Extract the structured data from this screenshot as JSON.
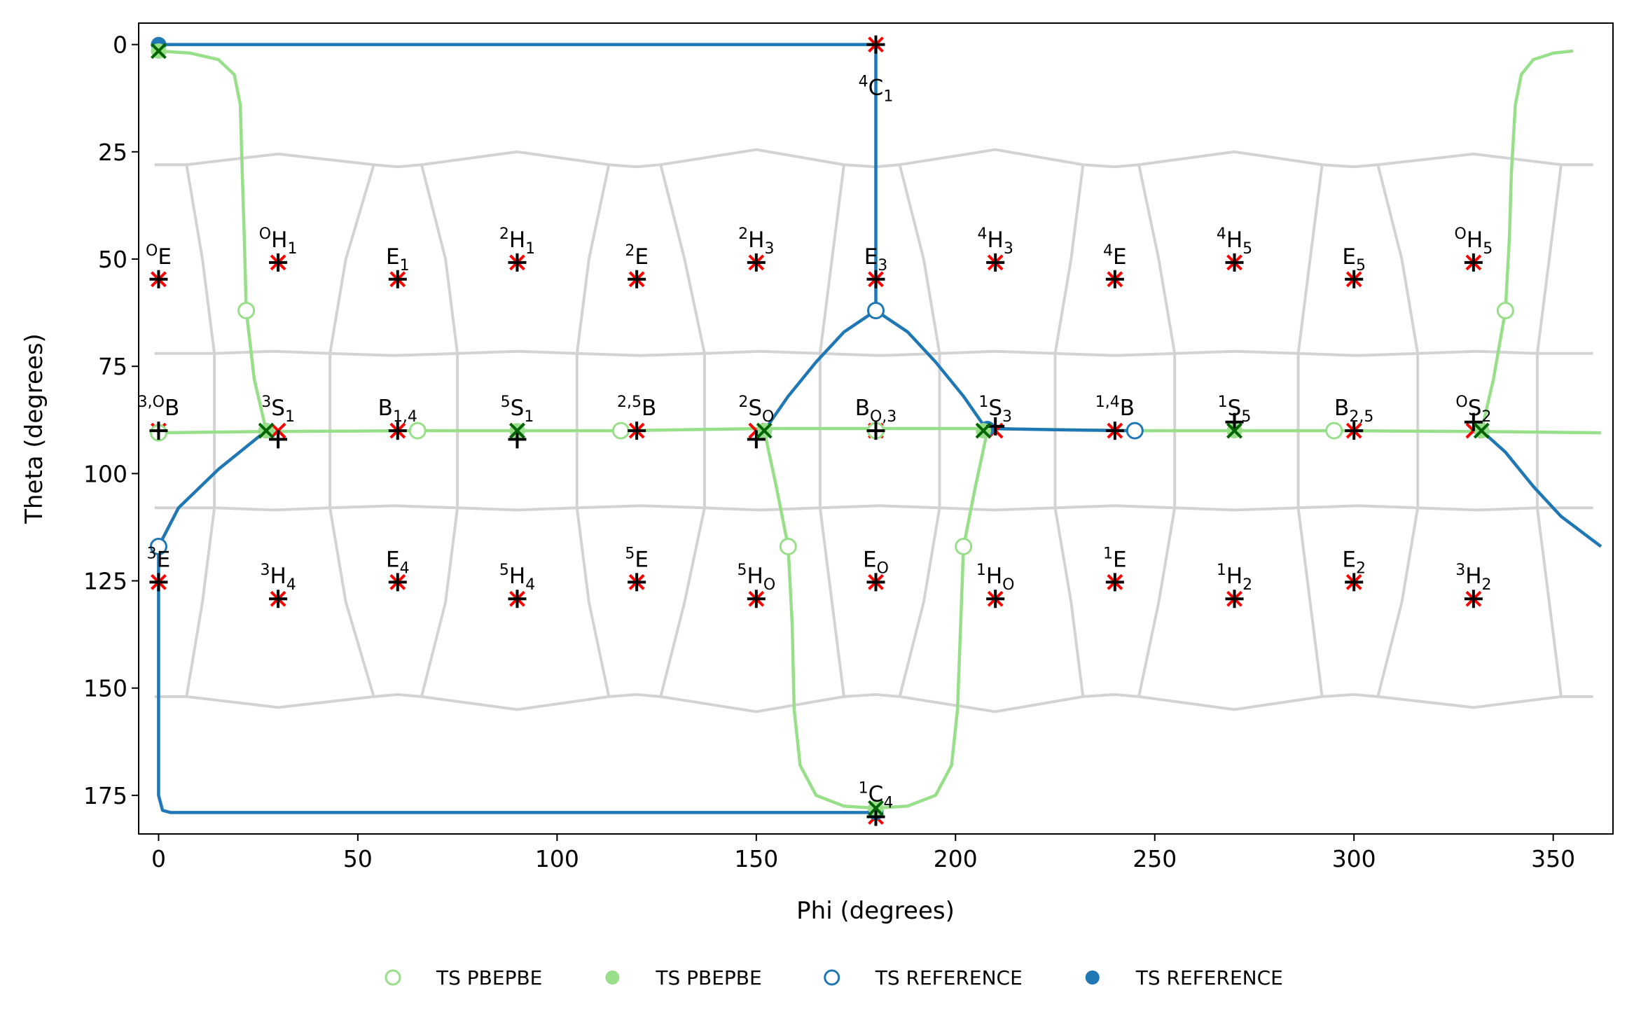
{
  "chart_data": {
    "type": "scatter",
    "xlabel": "Phi (degrees)",
    "ylabel": "Theta (degrees)",
    "xlim": [
      -5,
      365
    ],
    "ylim": [
      -5,
      184
    ],
    "y_inverted": true,
    "xticks": [
      0,
      50,
      100,
      150,
      200,
      250,
      300,
      350
    ],
    "yticks": [
      0,
      25,
      50,
      75,
      100,
      125,
      150,
      175
    ],
    "canonical": {
      "marker": "x",
      "color": "#ff0000",
      "x": [
        0,
        30,
        60,
        90,
        120,
        150,
        180,
        210,
        240,
        270,
        300,
        330,
        0,
        30,
        60,
        90,
        120,
        150,
        180,
        210,
        240,
        270,
        300,
        330,
        0,
        30,
        60,
        90,
        120,
        150,
        180,
        210,
        240,
        270,
        300,
        330,
        180,
        180
      ],
      "y": [
        54.7,
        50.8,
        54.7,
        50.8,
        54.7,
        50.8,
        54.7,
        50.8,
        54.7,
        50.8,
        54.7,
        50.8,
        90,
        90,
        90,
        90,
        90,
        90,
        90,
        90,
        90,
        90,
        90,
        90,
        125.3,
        129.2,
        125.3,
        129.2,
        125.3,
        129.2,
        125.3,
        129.2,
        125.3,
        129.2,
        125.3,
        129.2,
        0,
        180
      ],
      "labels": [
        {
          "sup": "O",
          "main": "E"
        },
        {
          "sup": "O",
          "main": "H",
          "sub": "1"
        },
        {
          "main": "E",
          "sub": "1"
        },
        {
          "sup": "2",
          "main": "H",
          "sub": "1"
        },
        {
          "sup": "2",
          "main": "E"
        },
        {
          "sup": "2",
          "main": "H",
          "sub": "3"
        },
        {
          "main": "E",
          "sub": "3"
        },
        {
          "sup": "4",
          "main": "H",
          "sub": "3"
        },
        {
          "sup": "4",
          "main": "E"
        },
        {
          "sup": "4",
          "main": "H",
          "sub": "5"
        },
        {
          "main": "E",
          "sub": "5"
        },
        {
          "sup": "O",
          "main": "H",
          "sub": "5"
        },
        {
          "sup": "3,O",
          "main": "B"
        },
        {
          "sup": "3",
          "main": "S",
          "sub": "1"
        },
        {
          "main": "B",
          "sub": "1,4"
        },
        {
          "sup": "5",
          "main": "S",
          "sub": "1"
        },
        {
          "sup": "2,5",
          "main": "B"
        },
        {
          "sup": "2",
          "main": "S",
          "sub": "O"
        },
        {
          "main": "B",
          "sub": "O,3"
        },
        {
          "sup": "1",
          "main": "S",
          "sub": "3"
        },
        {
          "sup": "1,4",
          "main": "B"
        },
        {
          "sup": "1",
          "main": "S",
          "sub": "5"
        },
        {
          "main": "B",
          "sub": "2,5"
        },
        {
          "sup": "O",
          "main": "S",
          "sub": "2"
        },
        {
          "sup": "3",
          "main": "E"
        },
        {
          "sup": "3",
          "main": "H",
          "sub": "4"
        },
        {
          "main": "E",
          "sub": "4"
        },
        {
          "sup": "5",
          "main": "H",
          "sub": "4"
        },
        {
          "sup": "5",
          "main": "E"
        },
        {
          "sup": "5",
          "main": "H",
          "sub": "O"
        },
        {
          "main": "E",
          "sub": "O"
        },
        {
          "sup": "1",
          "main": "H",
          "sub": "O"
        },
        {
          "sup": "1",
          "main": "E"
        },
        {
          "sup": "1",
          "main": "H",
          "sub": "2"
        },
        {
          "main": "E",
          "sub": "2"
        },
        {
          "sup": "3",
          "main": "H",
          "sub": "2"
        },
        {
          "sup": "4",
          "main": "C",
          "sub": "1"
        },
        {
          "sup": "1",
          "main": "C",
          "sub": "4"
        }
      ]
    },
    "boundary_color": "#d3d3d3",
    "boundaries": [
      {
        "x": [
          -1,
          7,
          30,
          54,
          60,
          66,
          90,
          113,
          120,
          126,
          150,
          172,
          180,
          186,
          210,
          232,
          240,
          246,
          270,
          292,
          300,
          306,
          330,
          352,
          360
        ],
        "y": [
          28,
          28,
          25.5,
          28,
          28.5,
          28,
          25,
          28,
          28.5,
          28,
          24.5,
          28,
          28.5,
          28,
          24.5,
          28,
          28.5,
          28,
          25,
          28,
          28.5,
          28,
          25.5,
          28,
          28
        ]
      },
      {
        "x": [
          -1,
          14,
          29,
          43,
          59,
          75,
          90,
          105,
          121,
          137,
          151,
          166,
          181,
          196,
          210,
          225,
          240,
          255,
          270,
          286,
          301,
          316,
          331,
          346,
          360
        ],
        "y": [
          72,
          72,
          71.5,
          72,
          72.5,
          72,
          71.5,
          72,
          72.5,
          72,
          71.5,
          72,
          72.5,
          72,
          71.5,
          72,
          72.5,
          72,
          71.5,
          72,
          72.5,
          72,
          71.5,
          72,
          72
        ]
      },
      {
        "x": [
          -1,
          14,
          29,
          43,
          59,
          75,
          90,
          105,
          121,
          137,
          151,
          166,
          181,
          196,
          210,
          225,
          240,
          255,
          270,
          286,
          301,
          316,
          331,
          346,
          360
        ],
        "y": [
          108,
          108,
          108.5,
          108,
          107.5,
          108,
          108.5,
          108,
          107.5,
          108,
          108.5,
          108,
          107.5,
          108,
          108.5,
          108,
          107.5,
          108,
          108.5,
          108,
          107.5,
          108,
          108.5,
          108,
          108
        ]
      },
      {
        "x": [
          -1,
          7,
          30,
          54,
          60,
          66,
          90,
          113,
          120,
          126,
          150,
          172,
          180,
          186,
          210,
          232,
          240,
          246,
          270,
          292,
          300,
          306,
          330,
          352,
          360
        ],
        "y": [
          152,
          152,
          154.5,
          152,
          151.5,
          152,
          155,
          152,
          151.5,
          152,
          155.5,
          152,
          151.5,
          152,
          155.5,
          152,
          151.5,
          152,
          155,
          152,
          151.5,
          152,
          154.5,
          152,
          152
        ]
      },
      {
        "x": [
          7,
          11,
          14,
          14,
          11,
          7
        ],
        "y": [
          28,
          50,
          72,
          108,
          130,
          152
        ]
      },
      {
        "x": [
          54,
          47,
          43,
          43,
          47,
          54
        ],
        "y": [
          28,
          50,
          72,
          108,
          130,
          152
        ]
      },
      {
        "x": [
          66,
          72,
          75,
          75,
          72,
          66
        ],
        "y": [
          28,
          50,
          72,
          108,
          130,
          152
        ]
      },
      {
        "x": [
          113,
          108,
          105,
          105,
          108,
          113
        ],
        "y": [
          28,
          50,
          72,
          108,
          130,
          152
        ]
      },
      {
        "x": [
          126,
          132,
          137,
          137,
          132,
          126
        ],
        "y": [
          28,
          50,
          72,
          108,
          130,
          152
        ]
      },
      {
        "x": [
          172,
          169,
          166,
          166,
          169,
          172
        ],
        "y": [
          28,
          50,
          72,
          108,
          130,
          152
        ]
      },
      {
        "x": [
          186,
          192,
          196,
          196,
          192,
          186
        ],
        "y": [
          28,
          50,
          72,
          108,
          130,
          152
        ]
      },
      {
        "x": [
          232,
          229,
          225,
          225,
          229,
          232
        ],
        "y": [
          28,
          50,
          72,
          108,
          130,
          152
        ]
      },
      {
        "x": [
          246,
          251,
          255,
          255,
          251,
          246
        ],
        "y": [
          28,
          50,
          72,
          108,
          130,
          152
        ]
      },
      {
        "x": [
          292,
          289,
          286,
          286,
          289,
          292
        ],
        "y": [
          28,
          50,
          72,
          108,
          130,
          152
        ]
      },
      {
        "x": [
          306,
          312,
          316,
          316,
          312,
          306
        ],
        "y": [
          28,
          50,
          72,
          108,
          130,
          152
        ]
      },
      {
        "x": [
          352,
          349,
          346,
          346,
          349,
          352
        ],
        "y": [
          28,
          50,
          72,
          108,
          130,
          152
        ]
      }
    ],
    "lines": [
      {
        "color": "#98df8a",
        "x": [
          0,
          8,
          15,
          19,
          20.5,
          21,
          21.5,
          22,
          24,
          27
        ],
        "y": [
          1.5,
          2,
          3.5,
          7,
          14,
          30,
          45,
          62,
          78,
          90
        ]
      },
      {
        "color": "#98df8a",
        "x": [
          0,
          27,
          65,
          90,
          116,
          152,
          180,
          207,
          245,
          270,
          295,
          332,
          362
        ],
        "y": [
          90.5,
          90.2,
          90,
          90,
          90,
          89.5,
          89.5,
          89.5,
          90,
          90,
          90,
          90.2,
          90.5
        ]
      },
      {
        "color": "#98df8a",
        "x": [
          152,
          155,
          158,
          159,
          159.5,
          161,
          165,
          172,
          180,
          188,
          195,
          199,
          200.5,
          202,
          205,
          208
        ],
        "y": [
          90,
          103,
          117,
          135,
          155,
          168,
          175,
          177.5,
          178,
          177.5,
          175,
          168,
          155,
          117,
          103,
          90
        ]
      },
      {
        "color": "#98df8a",
        "x": [
          332,
          335,
          338,
          339,
          339.5,
          340.5,
          342,
          345,
          350,
          355
        ],
        "y": [
          90,
          78,
          62,
          45,
          30,
          14,
          7,
          3.5,
          2,
          1.5
        ]
      },
      {
        "color": "#1f77b4",
        "x": [
          0,
          180,
          180
        ],
        "y": [
          0,
          0,
          62
        ]
      },
      {
        "color": "#1f77b4",
        "x": [
          152,
          158,
          165,
          172,
          180,
          188,
          195,
          202,
          208
        ],
        "y": [
          90,
          82,
          74,
          67,
          62,
          67,
          74,
          82,
          90
        ]
      },
      {
        "color": "#1f77b4",
        "x": [
          208,
          225,
          245
        ],
        "y": [
          89.5,
          89.8,
          90
        ]
      },
      {
        "color": "#1f77b4",
        "x": [
          27,
          15,
          5,
          0,
          0,
          0,
          1,
          3,
          180
        ],
        "y": [
          90,
          99,
          108,
          117,
          150,
          175,
          178.5,
          179,
          179
        ]
      },
      {
        "color": "#1f77b4",
        "x": [
          332,
          338,
          345,
          352,
          362
        ],
        "y": [
          90,
          95,
          103,
          110,
          117
        ]
      }
    ],
    "series": [
      {
        "name": "TS PBEPBE",
        "color": "#98df8a",
        "filled": false,
        "x": [
          22,
          0,
          65,
          116,
          158,
          202,
          180,
          295,
          338
        ],
        "y": [
          62,
          90.5,
          90,
          90,
          117,
          117,
          90,
          90,
          62
        ]
      },
      {
        "name": "TS PBEPBE",
        "color": "#98df8a",
        "filled": true,
        "x": [
          0,
          27,
          90,
          152,
          207,
          270,
          332,
          180
        ],
        "y": [
          1.5,
          90,
          90,
          90,
          90,
          90,
          90,
          178
        ]
      },
      {
        "name": "TS REFERENCE",
        "color": "#1f77b4",
        "filled": false,
        "x": [
          0,
          180,
          245
        ],
        "y": [
          117,
          62,
          90
        ]
      },
      {
        "name": "TS REFERENCE",
        "color": "#1f77b4",
        "filled": true,
        "x": [
          0,
          27,
          152,
          208,
          332,
          180
        ],
        "y": [
          0,
          90,
          90,
          89.5,
          90,
          179
        ]
      }
    ],
    "marks": [
      {
        "marker": "+",
        "color": "#000000",
        "x": [
          0,
          30,
          60,
          90,
          120,
          150,
          180,
          210,
          240,
          270,
          300,
          330,
          0,
          30,
          60,
          90,
          120,
          150,
          180,
          210,
          240,
          270,
          300,
          330,
          0,
          30,
          60,
          90,
          120,
          150,
          180,
          210,
          240,
          270,
          300,
          330,
          180,
          180
        ],
        "y": [
          54.7,
          50.8,
          54.7,
          50.8,
          54.7,
          50.8,
          54.7,
          50.8,
          54.7,
          50.8,
          54.7,
          50.8,
          90,
          92,
          90,
          92,
          90,
          92,
          90,
          89,
          90,
          88,
          90,
          88,
          125.3,
          129.2,
          125.3,
          129.2,
          125.3,
          129.2,
          125.3,
          129.2,
          125.3,
          129.2,
          125.3,
          129.2,
          0,
          180
        ]
      },
      {
        "marker": "x",
        "color": "#006400",
        "x": [
          0,
          27,
          90,
          152,
          207,
          270,
          332,
          180
        ],
        "y": [
          1.5,
          90,
          90,
          90,
          90,
          90,
          90,
          178
        ]
      }
    ]
  }
}
